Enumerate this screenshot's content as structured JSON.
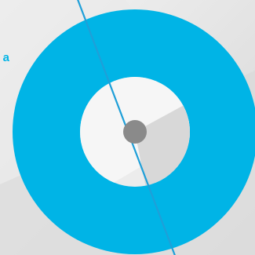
{
  "partial_label": {
    "text": "a"
  },
  "colors": {
    "ring": "#00b4e6",
    "pointer_line": "#1f9fd8",
    "center_dot": "#8a8a8a",
    "background_light": "#f2f2f2",
    "background_mid": "#e6e6e6",
    "background_dark": "#d2d2d2"
  },
  "icons": {
    "dial": "ring-dial-icon",
    "pointer": "pointer-line-icon",
    "hub": "center-hub-icon"
  }
}
